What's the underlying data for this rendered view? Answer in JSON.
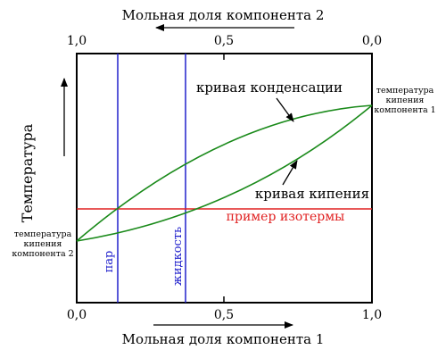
{
  "top_axis": {
    "title": "Мольная доля компонента 2",
    "ticks": [
      "1,0",
      "0,5",
      "0,0"
    ]
  },
  "bottom_axis": {
    "title": "Мольная доля компонента 1",
    "ticks": [
      "0,0",
      "0,5",
      "1,0"
    ]
  },
  "y_axis": {
    "title": "Температура"
  },
  "labels": {
    "left_boiling_point": [
      "температура",
      "кипения",
      "компонента 2"
    ],
    "right_boiling_point": [
      "температура",
      "кипения",
      "компонента 1"
    ],
    "condensation_curve": "кривая конденсации",
    "boiling_curve": "кривая кипения",
    "isotherm": "пример изотермы",
    "vapor": "пар",
    "liquid": "жидкость"
  },
  "colors": {
    "curves": "#1a8a1a",
    "isotherm": "#e02020",
    "composition_lines": "#2020cc",
    "frame": "#000000"
  },
  "chart_data": {
    "type": "line",
    "title": "",
    "xlabel": "Мольная доля компонента 1",
    "x2label": "Мольная доля компонента 2",
    "ylabel": "Температура",
    "xlim": [
      0,
      1
    ],
    "x2lim": [
      1,
      0
    ],
    "xticks": [
      "0,0",
      "0,5",
      "1,0"
    ],
    "x2ticks": [
      "1,0",
      "0,5",
      "0,0"
    ],
    "y_ticks_shown": false,
    "series": [
      {
        "name": "кривая конденсации",
        "kind": "curve",
        "upper": true
      },
      {
        "name": "кривая кипения",
        "kind": "curve",
        "upper": false
      },
      {
        "name": "пример изотермы",
        "kind": "horizontal-line"
      },
      {
        "name": "пар",
        "kind": "vertical-line",
        "x": 0.14
      },
      {
        "name": "жидкость",
        "kind": "vertical-line",
        "x": 0.37
      }
    ],
    "grid": false
  }
}
